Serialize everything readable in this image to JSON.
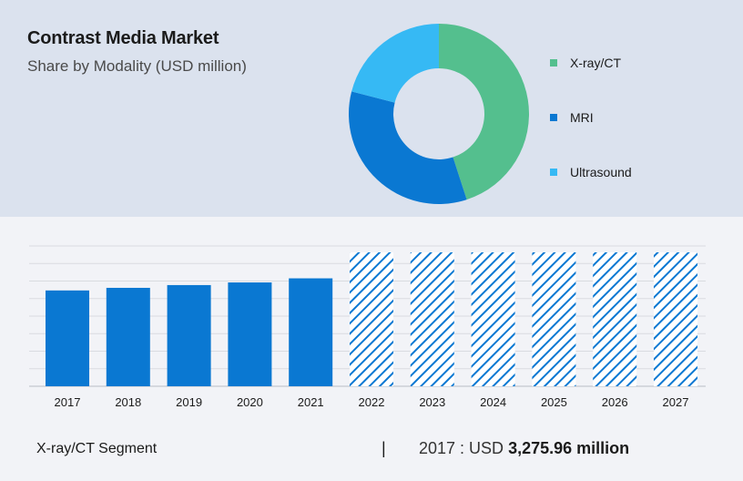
{
  "header": {
    "title": "Contrast Media Market",
    "subtitle": "Share by Modality (USD million)"
  },
  "footer": {
    "segment_label": "X-ray/CT Segment",
    "divider": "|",
    "year_prefix": "2017 : USD",
    "value": "3,275.96 million"
  },
  "colors": {
    "xray": "#54bf8e",
    "mri": "#0a78d2",
    "ultrasound": "#36b9f4",
    "bar": "#0a78d2",
    "forecast_hatch": "#0a78d2"
  },
  "chart_data": [
    {
      "type": "pie",
      "donut": true,
      "slices": [
        {
          "label": "X-ray/CT",
          "value": 45
        },
        {
          "label": "MRI",
          "value": 34
        },
        {
          "label": "Ultrasound",
          "value": 21
        }
      ],
      "legend_position": "right"
    },
    {
      "type": "bar",
      "categories": [
        "2017",
        "2018",
        "2019",
        "2020",
        "2021",
        "2022",
        "2023",
        "2024",
        "2025",
        "2026",
        "2027"
      ],
      "values": [
        3275.96,
        3365,
        3460,
        3550,
        3690,
        null,
        null,
        null,
        null,
        null,
        null
      ],
      "forecast_categories": [
        "2022",
        "2023",
        "2024",
        "2025",
        "2026",
        "2027"
      ],
      "grid": true
    }
  ]
}
